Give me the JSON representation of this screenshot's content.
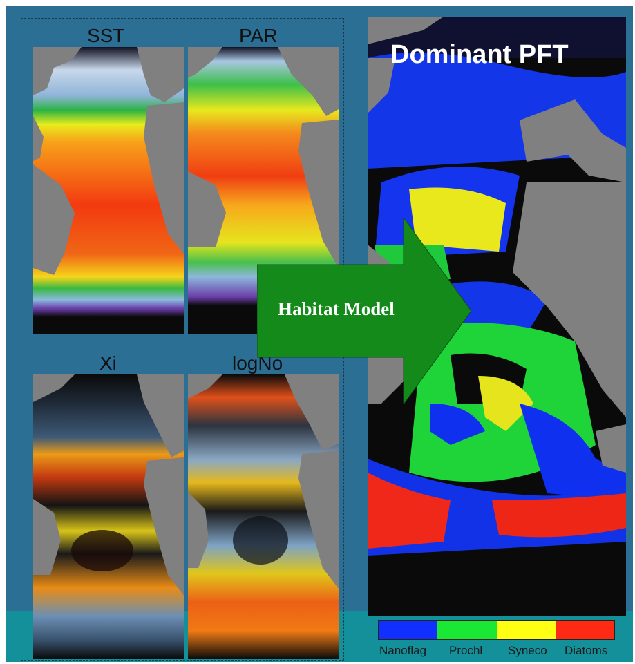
{
  "panels": {
    "sst": {
      "title": "SST"
    },
    "par": {
      "title": "PAR"
    },
    "xi": {
      "title": "Xi"
    },
    "logno": {
      "title": "logNo"
    }
  },
  "dominant": {
    "title": "Dominant PFT"
  },
  "arrow": {
    "label": "Habitat Model",
    "color": "#138a1a"
  },
  "legend": {
    "items": [
      {
        "label": "Nanoflag",
        "color": "#1030ff"
      },
      {
        "label": "Prochl",
        "color": "#19e834"
      },
      {
        "label": "Syneco",
        "color": "#ffff14"
      },
      {
        "label": "Diatoms",
        "color": "#ff2a14"
      }
    ]
  },
  "colors": {
    "background": "#2b6f95",
    "band": "#13909a",
    "land": "#808080",
    "no_data": "#0a0a0a"
  }
}
